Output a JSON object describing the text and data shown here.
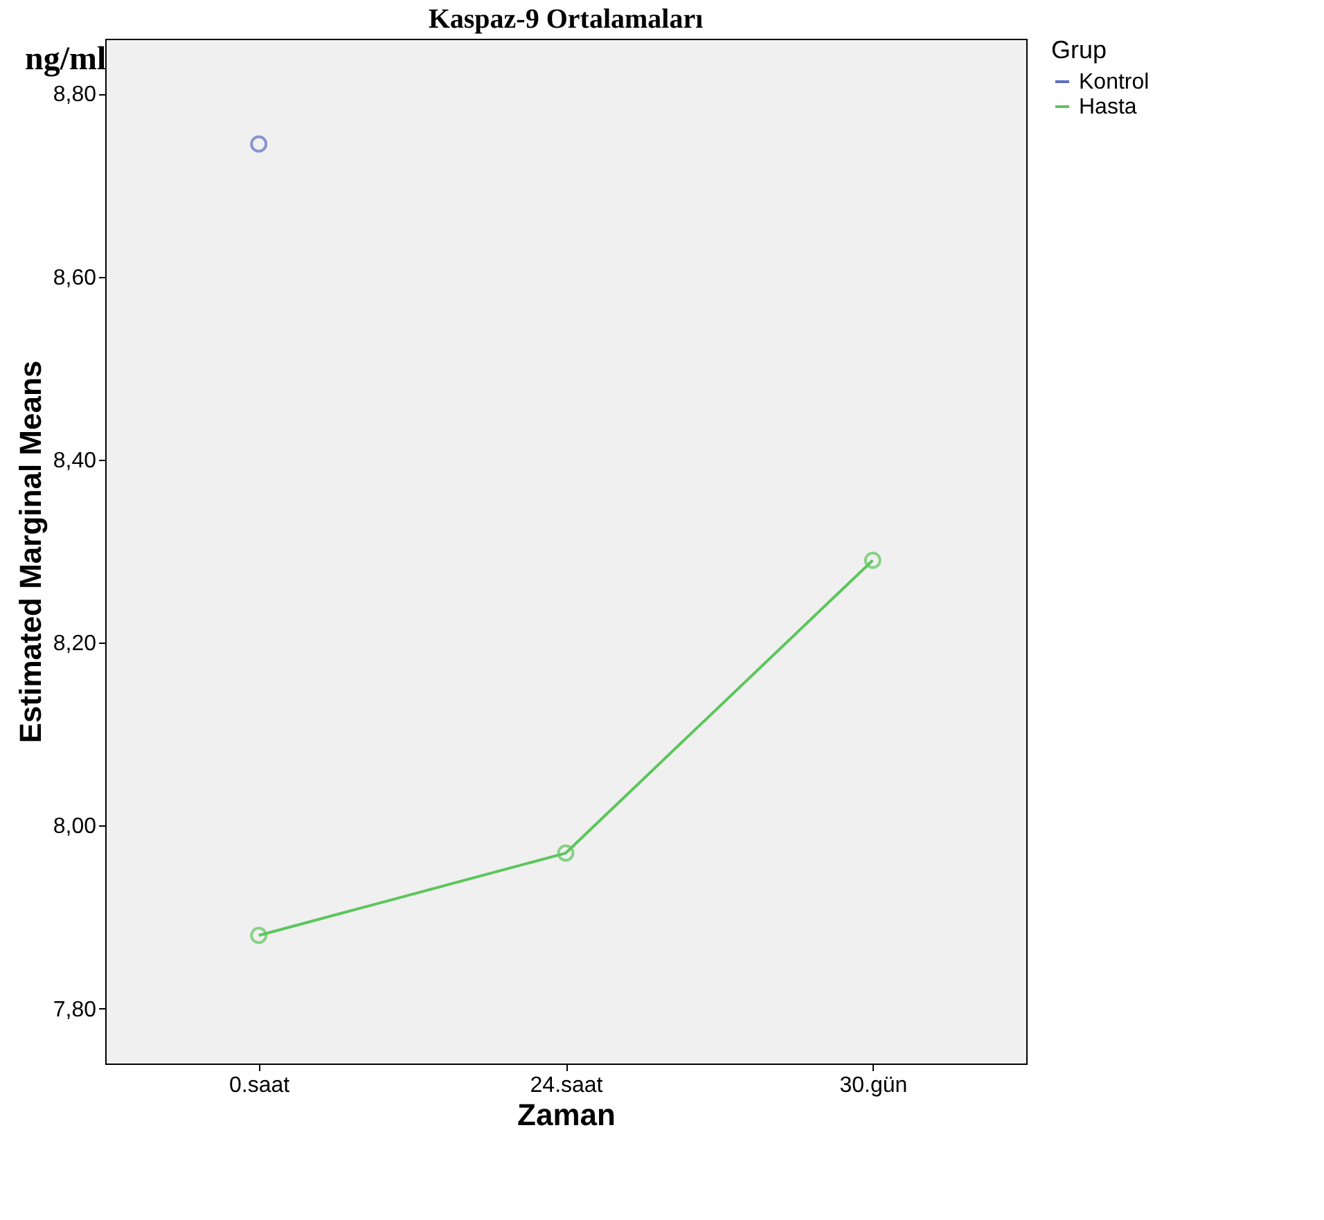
{
  "chart_data": {
    "type": "line",
    "title": "Kaspaz-9 Ortalamaları",
    "xlabel": "Zaman",
    "ylabel": "Estimated Marginal Means",
    "legend_title": "Grup",
    "annotations": [
      "ng/ml"
    ],
    "categories": [
      "0.saat",
      "24.saat",
      "30.gün"
    ],
    "series": [
      {
        "name": "Kontrol",
        "color": "#5b6fc4",
        "values": [
          8.745,
          null,
          null
        ]
      },
      {
        "name": "Hasta",
        "color": "#5cc65c",
        "values": [
          7.88,
          7.97,
          8.29
        ]
      }
    ],
    "ylim": [
      7.74,
      8.86
    ],
    "yticks": [
      {
        "value": 7.8,
        "label": "7,80"
      },
      {
        "value": 8.0,
        "label": "8,00"
      },
      {
        "value": 8.2,
        "label": "8,20"
      },
      {
        "value": 8.4,
        "label": "8,40"
      },
      {
        "value": 8.6,
        "label": "8,60"
      },
      {
        "value": 8.8,
        "label": "8,80"
      }
    ],
    "marker": "circle",
    "line_style": "solid",
    "grid": false,
    "legend": "top right"
  }
}
